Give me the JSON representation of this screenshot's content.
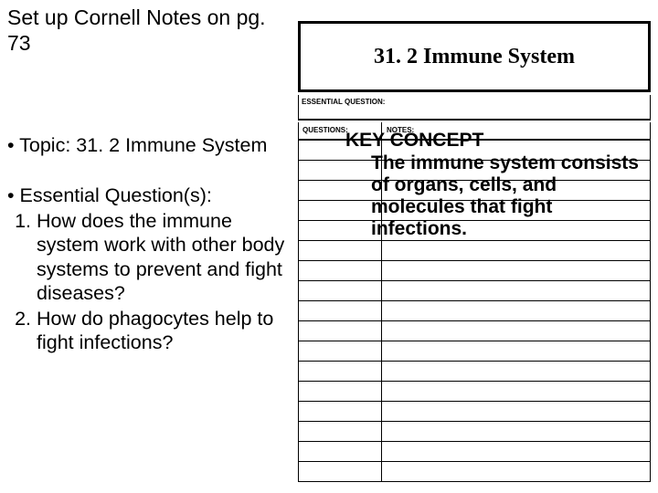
{
  "left": {
    "setup": "Set up Cornell Notes on pg. 73",
    "topic_label": "Topic:",
    "topic_value": "31. 2 Immune System",
    "eq_heading": "Essential Question(s):",
    "questions": [
      "How does the immune system work with other body systems to prevent and fight diseases?",
      "How do phagocytes help to fight infections?"
    ]
  },
  "sheet": {
    "title": "31. 2 Immune System",
    "labels": {
      "essential_question": "ESSENTIAL QUESTION:",
      "questions": "QUESTIONS:",
      "notes": "NOTES:"
    },
    "row_count": 17
  },
  "key_concept": {
    "heading": "KEY CONCEPT",
    "body": "The immune system consists of organs, cells, and molecules that fight infections."
  },
  "colors": {
    "text": "#000000",
    "line": "#000000",
    "background": "#ffffff"
  }
}
